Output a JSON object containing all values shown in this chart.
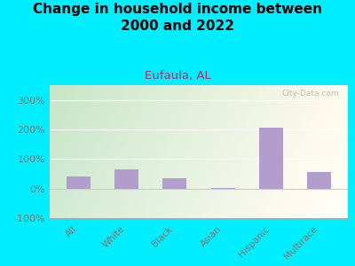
{
  "title": "Change in household income between\n2000 and 2022",
  "subtitle": "Eufaula, AL",
  "watermark": "City-Data.com",
  "categories": [
    "All",
    "White",
    "Black",
    "Asian",
    "Hispanic",
    "Multirace"
  ],
  "values": [
    40,
    65,
    35,
    1,
    205,
    55
  ],
  "bar_color": "#b39dcc",
  "background_outer": "#00eeff",
  "plot_bg_left": "#c8e6c9",
  "plot_bg_right": "#f5f5e8",
  "title_color": "#000000",
  "subtitle_color": "#b03060",
  "tick_label_color": "#8d6e63",
  "ytick_color": "#8d6e63",
  "ylim": [
    -100,
    350
  ],
  "yticks": [
    -100,
    0,
    100,
    200,
    300
  ],
  "title_fontsize": 11,
  "subtitle_fontsize": 9.5,
  "bar_width": 0.5,
  "figsize": [
    4.0,
    3.0
  ],
  "dpi": 100
}
